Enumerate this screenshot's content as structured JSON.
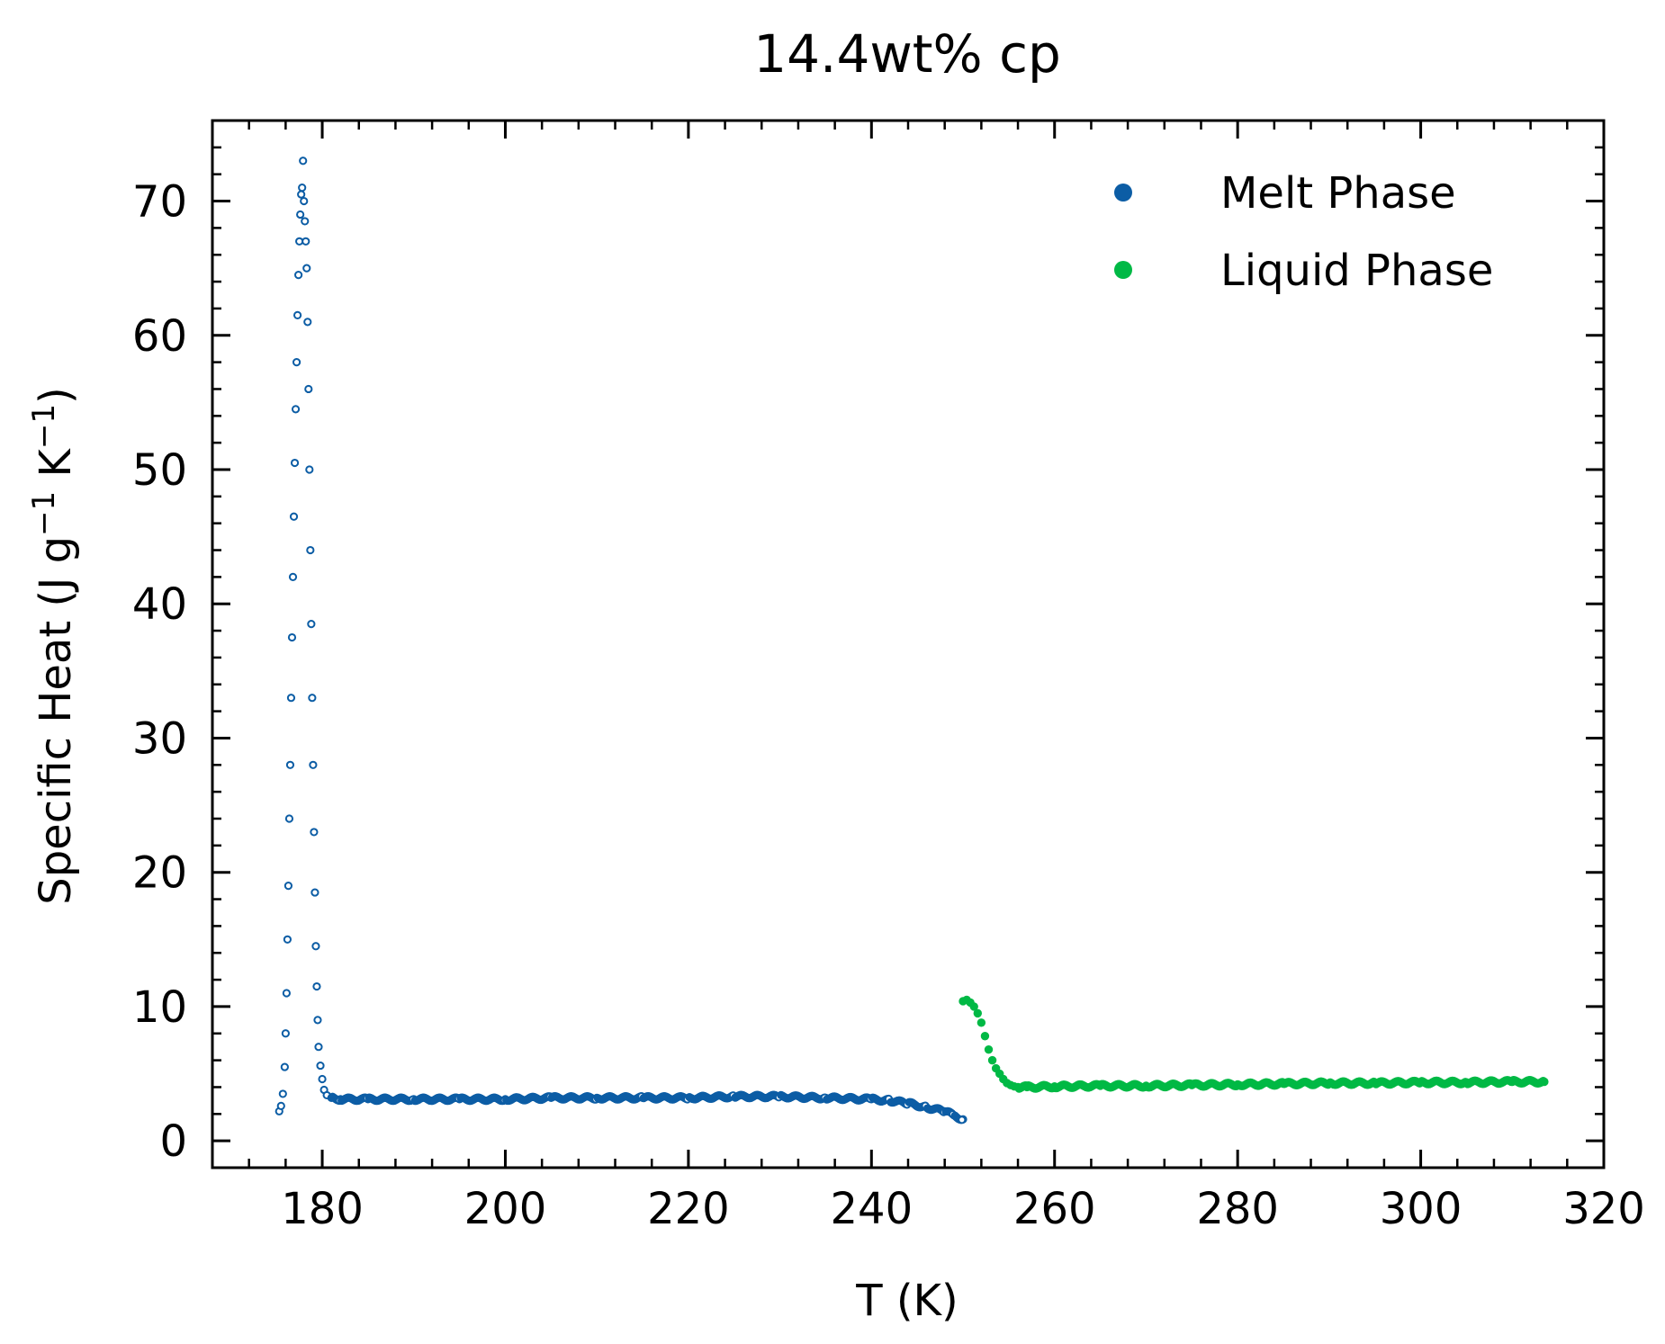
{
  "chart_data": {
    "type": "scatter",
    "title": "14.4wt% cp",
    "xlabel": "T (K)",
    "ylabel": "Specific Heat (J g⁻¹ K⁻¹)",
    "ylabel_parts": {
      "base": "Specific Heat (J g",
      "sup1": "−1",
      "mid": " K",
      "sup2": "−1",
      "end": ")"
    },
    "xlim": [
      168,
      320
    ],
    "ylim": [
      -2,
      76
    ],
    "x_ticks": [
      180,
      200,
      220,
      240,
      260,
      280,
      300,
      320
    ],
    "x_tick_labels": [
      "180",
      "200",
      "220",
      "240",
      "260",
      "280",
      "300",
      "320"
    ],
    "y_ticks": [
      0,
      10,
      20,
      30,
      40,
      50,
      60,
      70
    ],
    "y_tick_labels": [
      "0",
      "10",
      "20",
      "30",
      "40",
      "50",
      "60",
      "70"
    ],
    "x_minor_step": 4,
    "y_minor_step": 2,
    "legend_position": "top-right",
    "ticks_direction": "in",
    "series": [
      {
        "name": "Melt Phase",
        "color": "#0c5da5",
        "marker": "hollow-circle",
        "x": [
          175.3,
          175.5,
          175.7,
          175.9,
          176.0,
          176.1,
          176.2,
          176.3,
          176.4,
          176.5,
          176.6,
          176.7,
          176.8,
          176.9,
          177.0,
          177.1,
          177.2,
          177.3,
          177.4,
          177.5,
          177.6,
          177.7,
          177.8,
          177.9,
          178.0,
          178.1,
          178.2,
          178.3,
          178.4,
          178.5,
          178.6,
          178.7,
          178.8,
          178.9,
          179.0,
          179.1,
          179.2,
          179.3,
          179.4,
          179.5,
          179.6,
          179.8,
          180.0,
          180.2,
          180.5,
          181.0,
          182.0,
          185,
          190,
          195,
          200,
          205,
          210,
          215,
          220,
          225,
          230,
          235,
          240,
          242,
          244,
          246,
          248,
          249,
          250
        ],
        "y": [
          2.2,
          2.6,
          3.5,
          5.5,
          8.0,
          11.0,
          15.0,
          19.0,
          24.0,
          28.0,
          33.0,
          37.5,
          42.0,
          46.5,
          50.5,
          54.5,
          58.0,
          61.5,
          64.5,
          67.0,
          69.0,
          70.5,
          71.0,
          73.0,
          70.0,
          68.5,
          67.0,
          65.0,
          61.0,
          56.0,
          50.0,
          44.0,
          38.5,
          33.0,
          28.0,
          23.0,
          18.5,
          14.5,
          11.5,
          9.0,
          7.0,
          5.6,
          4.6,
          3.8,
          3.4,
          3.2,
          3.1,
          3.1,
          3.1,
          3.1,
          3.1,
          3.2,
          3.2,
          3.2,
          3.2,
          3.3,
          3.3,
          3.2,
          3.1,
          3.0,
          2.8,
          2.5,
          2.2,
          1.9,
          1.6
        ]
      },
      {
        "name": "Liquid Phase",
        "color": "#00b945",
        "marker": "filled-circle",
        "x": [
          250.0,
          250.4,
          250.8,
          251.2,
          251.6,
          252.0,
          252.4,
          252.8,
          253.2,
          253.6,
          254.0,
          254.4,
          254.8,
          255.2,
          255.6,
          256.0,
          257,
          260,
          265,
          270,
          275,
          280,
          285,
          290,
          295,
          300,
          305,
          310,
          313.5
        ],
        "y": [
          10.4,
          10.5,
          10.3,
          10.0,
          9.5,
          8.8,
          7.8,
          6.8,
          6.0,
          5.4,
          5.0,
          4.6,
          4.3,
          4.15,
          4.05,
          4.0,
          4.0,
          4.05,
          4.1,
          4.1,
          4.15,
          4.2,
          4.25,
          4.3,
          4.3,
          4.35,
          4.35,
          4.4,
          4.4
        ]
      }
    ]
  }
}
